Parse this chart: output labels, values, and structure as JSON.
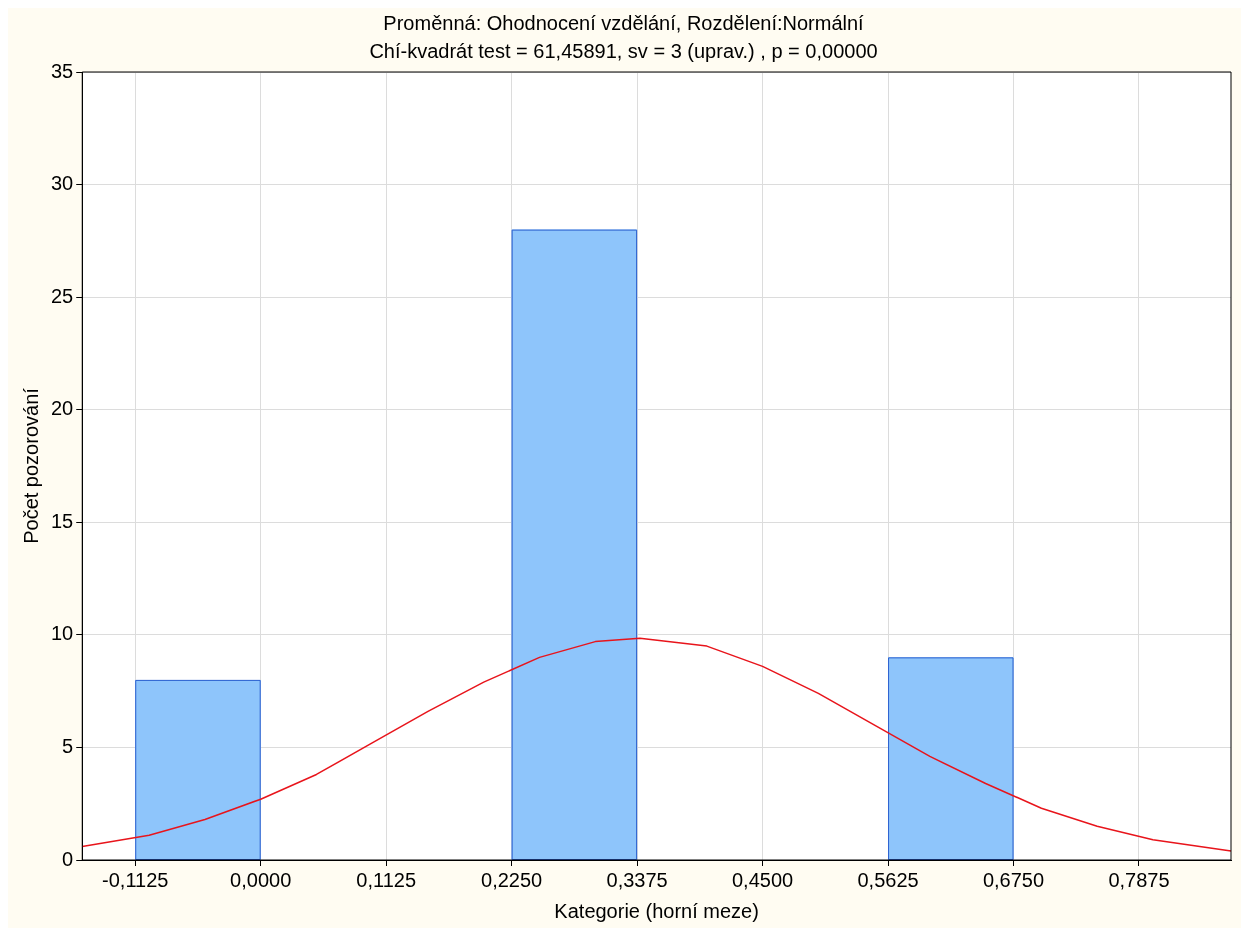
{
  "chart_data": {
    "type": "histogram",
    "title": "Proměnná: Ohodnocení vzdělání, Rozdělení:Normální",
    "subtitle": "Chí-kvadrát test = 61,45891, sv = 3 (uprav.) , p = 0,00000",
    "xlabel": "Kategorie (horní meze)",
    "ylabel": "Počet pozorování",
    "bins": [
      -0.1125,
      0,
      0.1125,
      0.225,
      0.3375,
      0.45,
      0.5625,
      0.675
    ],
    "values": [
      8,
      0,
      0,
      28,
      0,
      0,
      9
    ],
    "color": "#8ec5fb",
    "series": [
      {
        "type": "line",
        "color": "#e8141b",
        "x": [
          -0.16,
          -0.1,
          -0.05,
          0,
          0.05,
          0.1,
          0.15,
          0.2,
          0.25,
          0.3,
          0.34,
          0.4,
          0.45,
          0.5,
          0.55,
          0.6,
          0.65,
          0.7,
          0.75,
          0.8,
          0.87
        ],
        "values": [
          0.6,
          1.1,
          1.8,
          2.7,
          3.8,
          5.2,
          6.6,
          7.9,
          9.0,
          9.7,
          9.85,
          9.5,
          8.6,
          7.4,
          6.0,
          4.6,
          3.4,
          2.3,
          1.5,
          0.9,
          0.4
        ]
      }
    ],
    "xlim": [
      -0.16,
      0.87
    ],
    "xticks": [
      {
        "value": -0.1125,
        "label": "-0,1125"
      },
      {
        "value": 0,
        "label": "0,0000"
      },
      {
        "value": 0.1125,
        "label": "0,1125"
      },
      {
        "value": 0.225,
        "label": "0,2250"
      },
      {
        "value": 0.3375,
        "label": "0,3375"
      },
      {
        "value": 0.45,
        "label": "0,4500"
      },
      {
        "value": 0.5625,
        "label": "0,5625"
      },
      {
        "value": 0.675,
        "label": "0,6750"
      },
      {
        "value": 0.7875,
        "label": "0,7875"
      }
    ],
    "ylim": [
      0,
      35
    ],
    "yticks": [
      0,
      5,
      10,
      15,
      20,
      25,
      30,
      35
    ],
    "grid": true,
    "legend": false,
    "marker": "none",
    "line_style": "solid"
  }
}
